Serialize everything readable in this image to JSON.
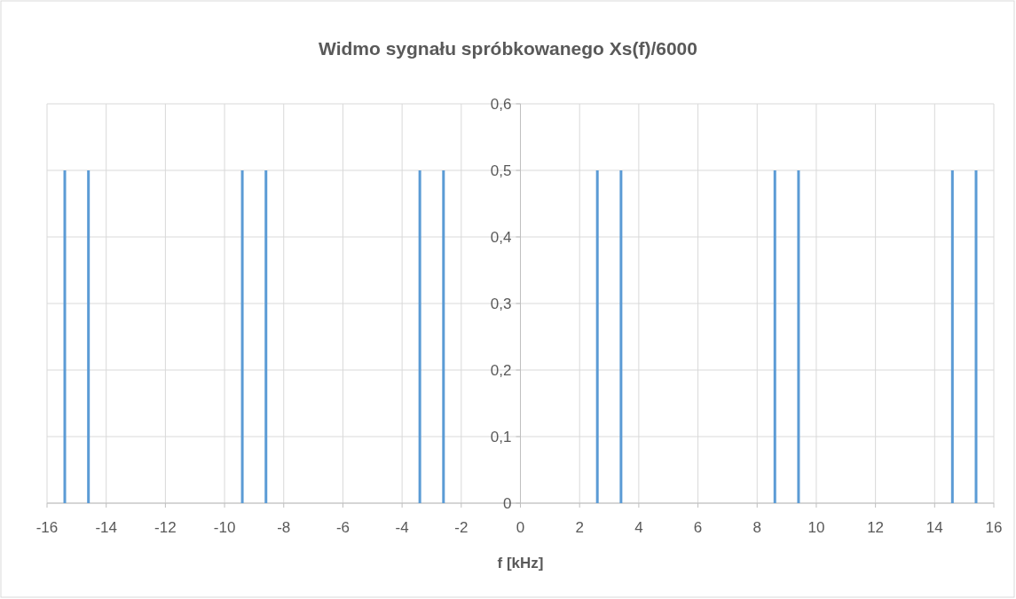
{
  "chart_data": {
    "type": "bar",
    "title": "Widmo sygnału spróbkowanego Xs(f)/6000",
    "xlabel": "f [kHz]",
    "x": [
      -15.4,
      -14.6,
      -9.4,
      -8.6,
      -3.4,
      -2.6,
      2.6,
      3.4,
      8.6,
      9.4,
      14.6,
      15.4
    ],
    "values": [
      0.5,
      0.5,
      0.5,
      0.5,
      0.5,
      0.5,
      0.5,
      0.5,
      0.5,
      0.5,
      0.5,
      0.5
    ],
    "color": "#5b9bd5",
    "xlim": [
      -16,
      16
    ],
    "xticks": [
      -16,
      -14,
      -12,
      -10,
      -8,
      -6,
      -4,
      -2,
      0,
      2,
      4,
      6,
      8,
      10,
      12,
      14,
      16
    ],
    "ylim": [
      0,
      0.6
    ],
    "yticks": [
      0,
      {
        "value": 0.1,
        "label": "0,1"
      },
      {
        "value": 0.2,
        "label": "0,2"
      },
      {
        "value": 0.3,
        "label": "0,3"
      },
      {
        "value": 0.4,
        "label": "0,4"
      },
      {
        "value": 0.5,
        "label": "0,5"
      },
      {
        "value": 0.6,
        "label": "0,6"
      }
    ],
    "grid": true
  }
}
